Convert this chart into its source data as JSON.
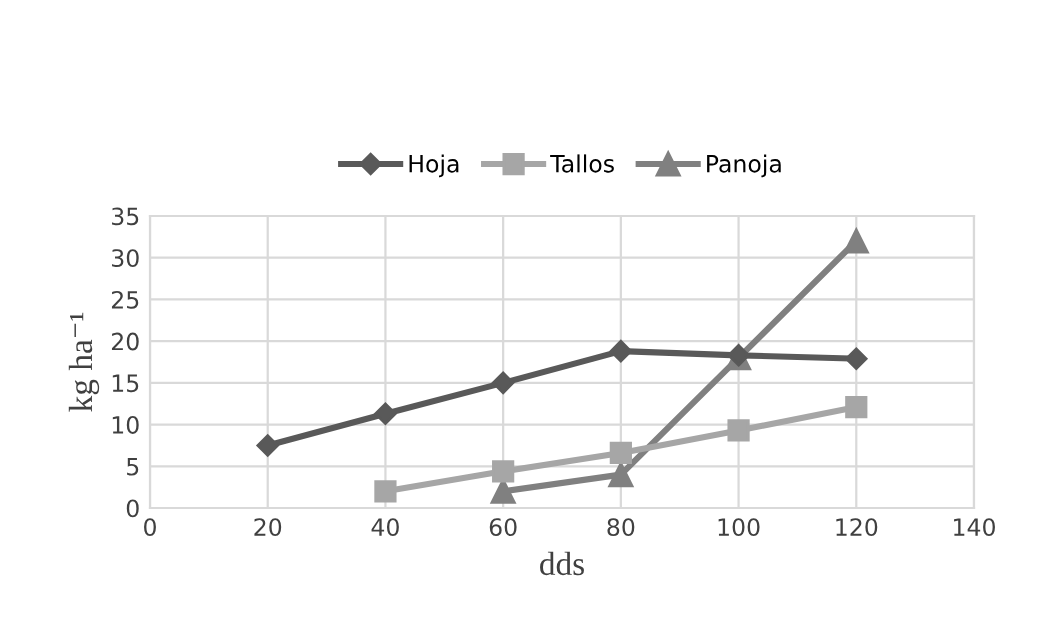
{
  "chart_data": {
    "type": "line",
    "xlabel": "dds",
    "ylabel": "kg ha⁻¹",
    "xlim": [
      0,
      140
    ],
    "xticks": [
      0,
      20,
      40,
      60,
      80,
      100,
      120,
      140
    ],
    "ylim": [
      0,
      35
    ],
    "yticks": [
      0,
      5,
      10,
      15,
      20,
      25,
      30,
      35
    ],
    "grid": true,
    "legend": "top",
    "series": [
      {
        "name": "Hoja",
        "color": "#595959",
        "marker": "diamond",
        "x": [
          20,
          40,
          60,
          80,
          100,
          120
        ],
        "values": [
          7.5,
          11.3,
          15,
          18.8,
          18.3,
          17.9
        ]
      },
      {
        "name": "Tallos",
        "color": "#a6a6a6",
        "marker": "square",
        "x": [
          40,
          60,
          80,
          100,
          120
        ],
        "values": [
          2,
          4.4,
          6.6,
          9.3,
          12.1
        ]
      },
      {
        "name": "Panoja",
        "color": "#808080",
        "marker": "triangle",
        "x": [
          60,
          80,
          100,
          120
        ],
        "values": [
          2,
          4,
          18,
          32
        ]
      }
    ]
  }
}
